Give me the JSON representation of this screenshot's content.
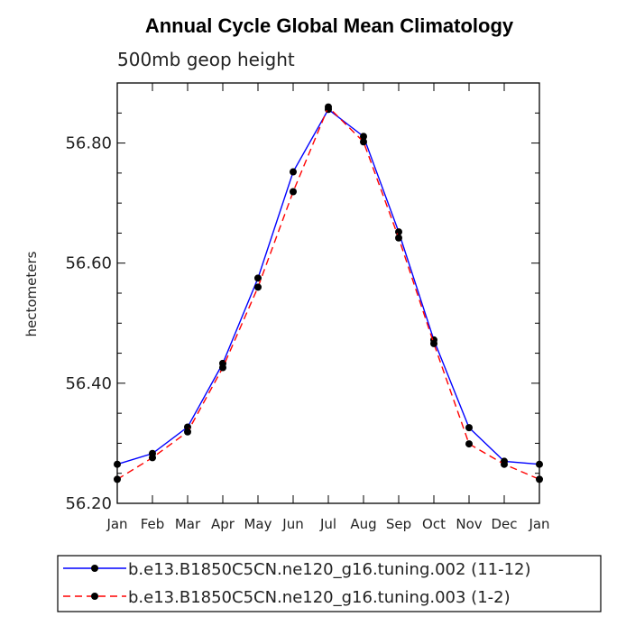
{
  "chart_data": {
    "type": "line",
    "title": "Annual Cycle Global Mean Climatology",
    "subtitle": "500mb geop height",
    "xlabel": "",
    "ylabel": "hectometers",
    "categories": [
      "Jan",
      "Feb",
      "Mar",
      "Apr",
      "May",
      "Jun",
      "Jul",
      "Aug",
      "Sep",
      "Oct",
      "Nov",
      "Dec",
      "Jan"
    ],
    "ylim": [
      56.2,
      56.9
    ],
    "yticks": [
      56.2,
      56.4,
      56.6,
      56.8
    ],
    "ytick_labels": [
      "56.20",
      "56.40",
      "56.60",
      "56.80"
    ],
    "series": [
      {
        "name": "b.e13.B1850C5CN.ne120_g16.tuning.002 (11-12)",
        "color": "#0000ff",
        "style": "solid",
        "values": [
          56.265,
          56.283,
          56.327,
          56.433,
          56.575,
          56.752,
          56.856,
          56.811,
          56.652,
          56.472,
          56.326,
          56.27,
          56.265
        ]
      },
      {
        "name": "b.e13.B1850C5CN.ne120_g16.tuning.003 (1-2)",
        "color": "#ff0000",
        "style": "dashed",
        "values": [
          56.24,
          56.276,
          56.319,
          56.426,
          56.56,
          56.719,
          56.86,
          56.802,
          56.642,
          56.466,
          56.299,
          56.265,
          56.24
        ]
      }
    ]
  }
}
